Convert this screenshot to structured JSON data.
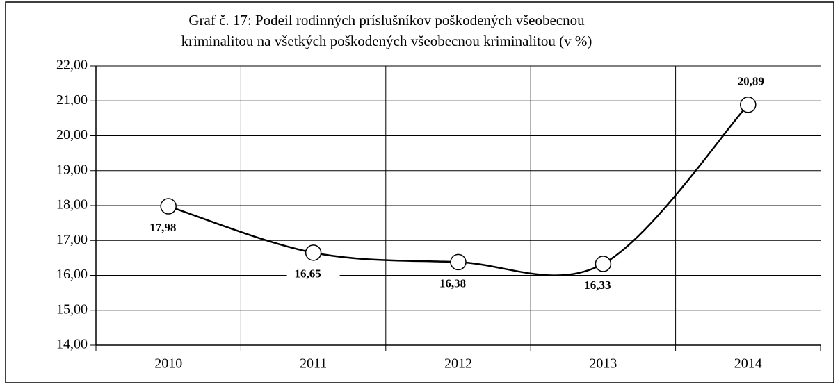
{
  "chart_data": {
    "type": "line",
    "title": [
      "Graf č. 17: Podeil rodinných príslušníkov poškodených všeobecnou",
      "kriminalitou na všetkých poškodených všeobecnou kriminalitou (v %)"
    ],
    "categories": [
      "2010",
      "2011",
      "2012",
      "2013",
      "2014"
    ],
    "series": [
      {
        "color": "#000000",
        "values": [
          17.98,
          16.65,
          16.38,
          16.33,
          20.89
        ],
        "value_labels": [
          "17,98",
          "16,65",
          "16,38",
          "16,33",
          "20,89"
        ]
      }
    ],
    "ylim": [
      14,
      22
    ],
    "yticks": [
      {
        "value": 14,
        "label": "14,00"
      },
      {
        "value": 15,
        "label": "15,00"
      },
      {
        "value": 16,
        "label": "16,00"
      },
      {
        "value": 17,
        "label": "17,00"
      },
      {
        "value": 18,
        "label": "18,00"
      },
      {
        "value": 19,
        "label": "19,00"
      },
      {
        "value": 20,
        "label": "20,00"
      },
      {
        "value": 21,
        "label": "21,00"
      },
      {
        "value": 22,
        "label": "22,00"
      }
    ],
    "grid": true,
    "smooth": true
  }
}
